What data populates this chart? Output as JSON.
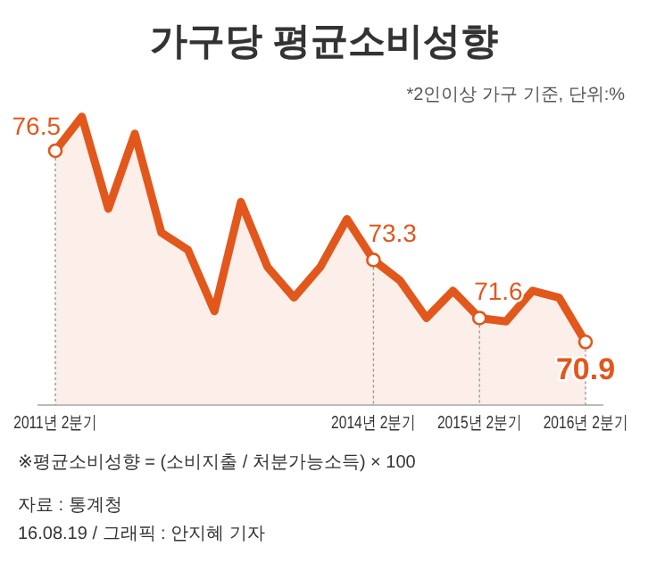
{
  "chart_data": {
    "type": "area",
    "title": "가구당 평균소비성향",
    "categories": [
      "2011년 2분기",
      null,
      null,
      null,
      null,
      null,
      null,
      null,
      null,
      null,
      null,
      null,
      "2014년 2분기",
      null,
      null,
      null,
      "2015년 2분기",
      null,
      null,
      null,
      "2016년 2분기"
    ],
    "series": [
      {
        "color": "#e2571c",
        "values": [
          76.5,
          77.5,
          74.8,
          77.0,
          74.1,
          73.6,
          71.8,
          75.0,
          73.1,
          72.2,
          73.1,
          74.5,
          73.3,
          72.7,
          71.6,
          72.4,
          71.6,
          71.5,
          72.4,
          72.2,
          70.9
        ],
        "value_labels": [
          "76.5",
          null,
          null,
          null,
          null,
          null,
          null,
          null,
          null,
          null,
          null,
          null,
          "73.3",
          null,
          null,
          null,
          "71.6",
          null,
          null,
          null,
          "70.9"
        ]
      }
    ],
    "tick_labels": "x",
    "annotations": [
      "*2인이상 가구 기준, 단위:%",
      "※평균소비성향 = (소비지출 / 처분가능소득) × 100",
      "자료 : 통계청",
      "16.08.19 / 그래픽 : 안지혜 기자"
    ]
  }
}
